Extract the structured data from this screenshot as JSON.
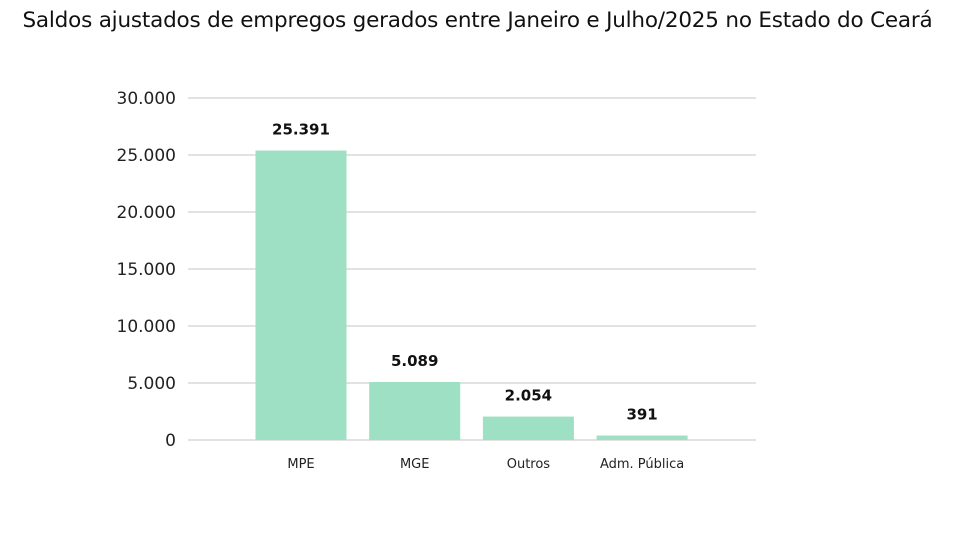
{
  "chart_data": {
    "type": "bar",
    "title": "Saldos ajustados de empregos gerados entre Janeiro e Julho/2025 no Estado do Ceará",
    "xlabel": "",
    "ylabel": "",
    "categories": [
      "MPE",
      "MGE",
      "Outros",
      "Adm. Pública"
    ],
    "values": [
      25391,
      5089,
      2054,
      391
    ],
    "data_labels": [
      "25.391",
      "5.089",
      "2.054",
      "391"
    ],
    "ylim": [
      0,
      30000
    ],
    "yticks": [
      0,
      5000,
      10000,
      15000,
      20000,
      25000,
      30000
    ],
    "ytick_labels": [
      "0",
      "5.000",
      "10.000",
      "15.000",
      "20.000",
      "25.000",
      "30.000"
    ],
    "grid": true,
    "legend": "none",
    "bar_color": "#9de0c3"
  }
}
